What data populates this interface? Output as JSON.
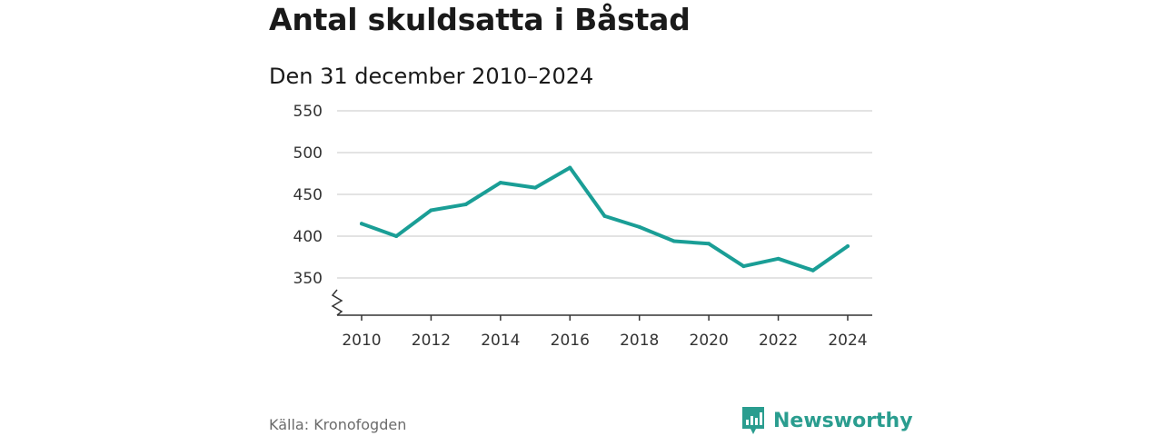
{
  "header": {
    "title": "Antal skuldsatta i Båstad",
    "subtitle": "Den 31 december 2010–2024"
  },
  "footer": {
    "source": "Källa: Kronofogden",
    "brand": "Newsworthy",
    "brand_icon": "bar-chart-icon",
    "brand_color": "#2a9d8f"
  },
  "chart_data": {
    "type": "line",
    "x": [
      2010,
      2011,
      2012,
      2013,
      2014,
      2015,
      2016,
      2017,
      2018,
      2019,
      2020,
      2021,
      2022,
      2023,
      2024
    ],
    "series": [
      {
        "values": [
          415,
          400,
          431,
          438,
          464,
          458,
          482,
          424,
          411,
          394,
          391,
          364,
          373,
          359,
          388
        ]
      }
    ],
    "xticks": [
      2010,
      2012,
      2014,
      2016,
      2018,
      2020,
      2022,
      2024
    ],
    "yticks": [
      350,
      400,
      450,
      500,
      550
    ],
    "xlim": [
      2010,
      2024
    ],
    "ylim": [
      350,
      550
    ],
    "y_axis_break": true,
    "grid": true,
    "line_color": "#1a9e96"
  }
}
